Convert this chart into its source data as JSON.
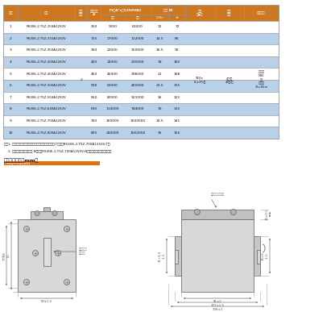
{
  "header_cols": [
    "序号",
    "型号",
    "尺寸\n代码",
    "额定电流\nA",
    "I²t（A²s）1250VAC",
    "功耗 W",
    "重量\n（g）",
    "包装\n数量",
    "安装扭矩"
  ],
  "sub_headers": [
    "预期",
    "熔断",
    "0.5In",
    "1n"
  ],
  "rows": [
    [
      "1",
      "RS306-2-T5Z-250A1250V",
      "",
      "250",
      "9000",
      "61000",
      "12",
      "72"
    ],
    [
      "2",
      "RS306-2-T5Z-315A1250V",
      "",
      "315",
      "17000",
      "112000",
      "14.5",
      "85"
    ],
    [
      "3",
      "RS306-2-T5Z-350A1250V",
      "",
      "350",
      "22000",
      "150000",
      "16.5",
      "92"
    ],
    [
      "4",
      "RS306-2-T5Z-400A1250V",
      "",
      "400",
      "32000",
      "210000",
      "19",
      "100"
    ],
    [
      "5",
      "RS306-2-T5Z-450A1250V",
      "2",
      "450",
      "45000",
      "298000",
      "21",
      "108"
    ],
    [
      "6",
      "RS306-2-T5Z-500A1250V",
      "",
      "500",
      "61000",
      "402000",
      "23.5",
      "115"
    ],
    [
      "7",
      "RS306-2-T5Z-550A1250V",
      "",
      "550",
      "80000",
      "521000",
      "26",
      "122"
    ],
    [
      "8",
      "RS306-2-T5Z-630A1250V",
      "",
      "630",
      "114000",
      "744000",
      "30",
      "135"
    ],
    [
      "9",
      "RS306-2-T5Z-700A1250V",
      "",
      "700",
      "160000",
      "1043000",
      "32.5",
      "141"
    ],
    [
      "10",
      "RS306-2-T5Z-800A1250V",
      "",
      "800",
      "240000",
      "1562000",
      "36",
      "155"
    ]
  ],
  "weight_text": "910±\n(1±3%）",
  "pack_text": "2只/盒\n28只/箱",
  "torque_text": "安装螺栓\nM10\n指矩\n安装力矩\n32±1N·m",
  "note1": "注：1. 如需端部（盖板上安装）可视指示器，型号后加-T，例：RS306-2-T5Z-700A1250V-T；",
  "note2": "    2. 如无需指示，型号后加-N，例：RS306-2-T5Z-700A1250V-N（无可视指示器与基座）；",
  "dim_title": "产品外形尺寸（mm）",
  "dim_subtitle": "熔断件外形及安装尺寸",
  "highlight_rows": [
    1,
    3,
    5,
    7,
    9
  ],
  "header_bg": "#cc7722",
  "highlight_bg": "#b8d0e8",
  "normal_bg": "#ffffff",
  "border_color": "#999999",
  "text_color": "#111111",
  "dim_label_color": "#555555",
  "orange_bar": "#e07010"
}
